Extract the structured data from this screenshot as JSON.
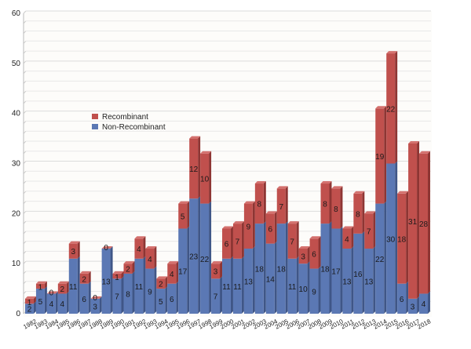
{
  "chart_data": {
    "type": "bar",
    "stacked": true,
    "title": "",
    "xlabel": "",
    "ylabel": "",
    "ylim": [
      0,
      60
    ],
    "yticks": [
      0,
      10,
      20,
      30,
      40,
      50,
      60
    ],
    "grid": true,
    "legend_position": "upper-left-center",
    "categories": [
      "1982",
      "1983",
      "1984",
      "1985",
      "1986",
      "1987",
      "1988",
      "1989",
      "1990",
      "1991",
      "1992",
      "1993",
      "1994",
      "1995",
      "1996",
      "1997",
      "1998",
      "1999",
      "2000",
      "2001",
      "2002",
      "2003",
      "2004",
      "2005",
      "2006",
      "2007",
      "2008",
      "2009",
      "2010",
      "2011",
      "2012",
      "2013",
      "2014",
      "2015",
      "2016",
      "2017",
      "2018"
    ],
    "series": [
      {
        "name": "Non-Recombinant",
        "color": "#5b78b4",
        "values": [
          2,
          5,
          4,
          4,
          11,
          6,
          3,
          13,
          7,
          8,
          11,
          9,
          5,
          6,
          17,
          23,
          22,
          7,
          11,
          11,
          13,
          18,
          14,
          18,
          11,
          10,
          9,
          18,
          17,
          13,
          16,
          13,
          22,
          30,
          6,
          3,
          4
        ]
      },
      {
        "name": "Recombinant",
        "color": "#c0504d",
        "values": [
          1,
          1,
          0,
          2,
          3,
          2,
          0,
          0,
          1,
          2,
          4,
          4,
          2,
          4,
          5,
          12,
          10,
          3,
          6,
          7,
          9,
          8,
          6,
          7,
          7,
          3,
          6,
          8,
          8,
          4,
          8,
          7,
          19,
          22,
          18,
          31,
          28
        ]
      }
    ],
    "legend": [
      {
        "name": "Recombinant",
        "color": "#c0504d"
      },
      {
        "name": "Non-Recombinant",
        "color": "#5b78b4"
      }
    ]
  }
}
